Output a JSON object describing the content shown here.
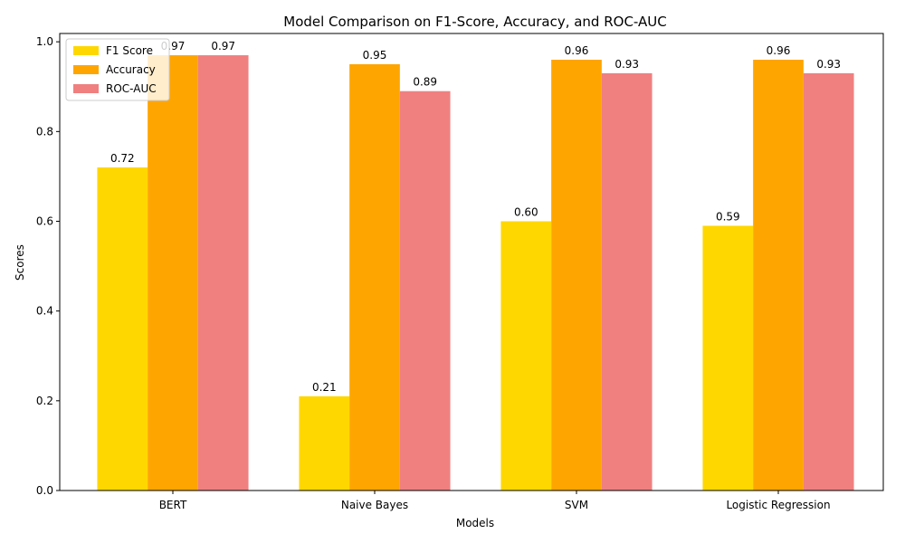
{
  "chart_data": {
    "type": "bar",
    "title": "Model Comparison on F1-Score, Accuracy, and ROC-AUC",
    "xlabel": "Models",
    "ylabel": "Scores",
    "categories": [
      "BERT",
      "Naive Bayes",
      "SVM",
      "Logistic Regression"
    ],
    "series": [
      {
        "name": "F1 Score",
        "color": "#ffd700",
        "values": [
          0.72,
          0.21,
          0.6,
          0.59
        ],
        "labels": [
          "0.72",
          "0.21",
          "0.60",
          "0.59"
        ]
      },
      {
        "name": "Accuracy",
        "color": "#ffa500",
        "values": [
          0.97,
          0.95,
          0.96,
          0.96
        ],
        "labels": [
          "0.97",
          "0.95",
          "0.96",
          "0.96"
        ]
      },
      {
        "name": "ROC-AUC",
        "color": "#f08080",
        "values": [
          0.97,
          0.89,
          0.93,
          0.93
        ],
        "labels": [
          "0.97",
          "0.89",
          "0.93",
          "0.93"
        ]
      }
    ],
    "ylim": [
      0,
      1.0185
    ],
    "yticks": [
      "0.0",
      "0.2",
      "0.4",
      "0.6",
      "0.8",
      "1.0"
    ],
    "legend_position": "upper-left",
    "grid": false
  }
}
